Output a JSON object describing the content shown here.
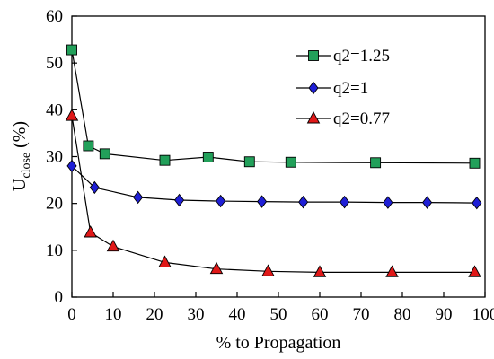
{
  "chart_data": {
    "type": "line",
    "xlabel": "% to Propagation",
    "ylabel_main": "U",
    "ylabel_sub": "close",
    "ylabel_unit": " (%)",
    "xlim": [
      0,
      100
    ],
    "ylim": [
      0,
      60
    ],
    "xticks": [
      0,
      10,
      20,
      30,
      40,
      50,
      60,
      70,
      80,
      90,
      100
    ],
    "yticks": [
      0,
      10,
      20,
      30,
      40,
      50,
      60
    ],
    "legend_position": "top-right",
    "grid": false,
    "series": [
      {
        "name": "q2=1.25",
        "marker": "square",
        "color": "#22a05a",
        "x": [
          0,
          4,
          8,
          22.5,
          33,
          43,
          53,
          73.5,
          97.5
        ],
        "y": [
          52.8,
          32.3,
          30.6,
          29.2,
          29.9,
          28.9,
          28.8,
          28.7,
          28.6
        ]
      },
      {
        "name": "q2=1",
        "marker": "diamond",
        "color": "#1f1fd6",
        "x": [
          0,
          5.5,
          16,
          26,
          36,
          46,
          56,
          66,
          76.5,
          86,
          98
        ],
        "y": [
          28.0,
          23.4,
          21.3,
          20.7,
          20.5,
          20.4,
          20.3,
          20.3,
          20.2,
          20.2,
          20.1
        ]
      },
      {
        "name": "q2=0.77",
        "marker": "triangle",
        "color": "#e01818",
        "x": [
          0,
          4.5,
          10,
          22.5,
          35,
          47.5,
          60,
          77.5,
          97.5
        ],
        "y": [
          38.7,
          13.8,
          10.8,
          7.4,
          6.0,
          5.5,
          5.3,
          5.3,
          5.3
        ]
      }
    ]
  }
}
